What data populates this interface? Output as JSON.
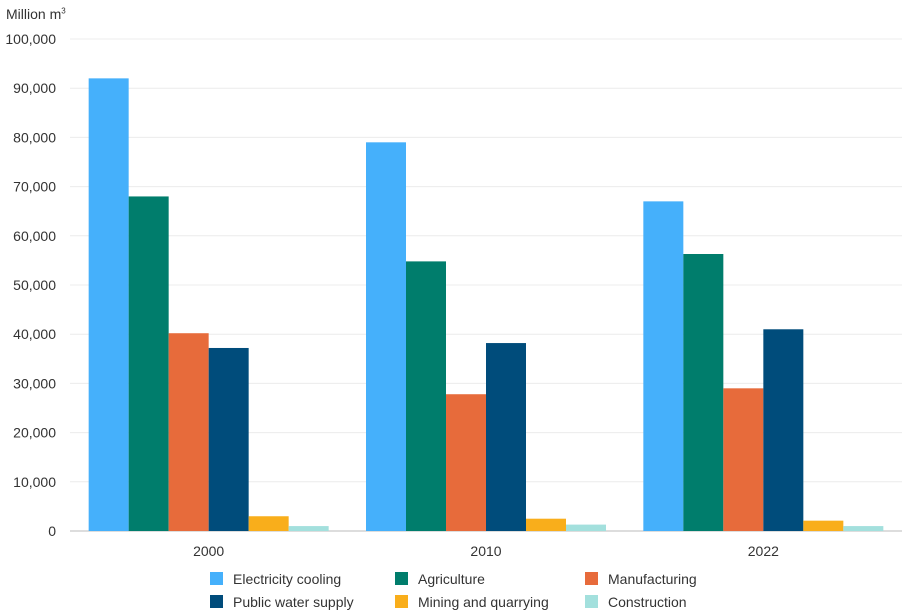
{
  "chart_data": {
    "type": "bar",
    "title": "",
    "ylabel_prefix": "Million m",
    "ylabel_sup": "3",
    "categories": [
      "2000",
      "2010",
      "2022"
    ],
    "ylim": [
      0,
      100000
    ],
    "yticks": [
      0,
      10000,
      20000,
      30000,
      40000,
      50000,
      60000,
      70000,
      80000,
      90000,
      100000
    ],
    "ytick_labels": [
      "0",
      "10,000",
      "20,000",
      "30,000",
      "40,000",
      "50,000",
      "60,000",
      "70,000",
      "80,000",
      "90,000",
      "100,000"
    ],
    "grid": true,
    "legend_position": "bottom",
    "series": [
      {
        "name": "Electricity cooling",
        "color": "#45b0fb",
        "values": [
          92000,
          79000,
          67000
        ]
      },
      {
        "name": "Agriculture",
        "color": "#007d6c",
        "values": [
          68000,
          54800,
          56300
        ]
      },
      {
        "name": "Manufacturing",
        "color": "#e76b3b",
        "values": [
          40200,
          27800,
          29000
        ]
      },
      {
        "name": "Public water supply",
        "color": "#004c7b",
        "values": [
          37200,
          38200,
          41000
        ]
      },
      {
        "name": "Mining and quarrying",
        "color": "#f9ae1b",
        "values": [
          3000,
          2500,
          2100
        ]
      },
      {
        "name": "Construction",
        "color": "#a3e0dd",
        "values": [
          1000,
          1300,
          1000
        ]
      }
    ]
  }
}
